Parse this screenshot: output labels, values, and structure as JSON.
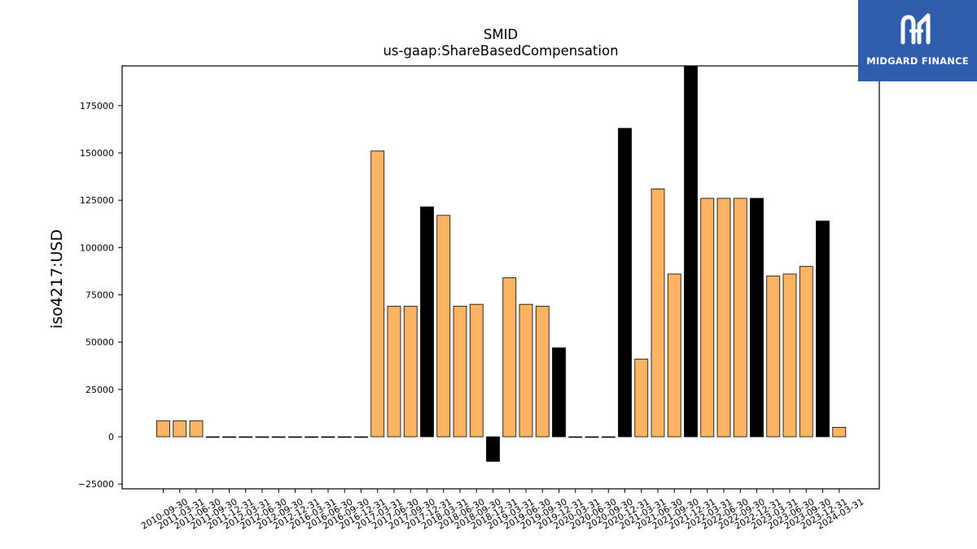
{
  "chart_data": {
    "type": "bar",
    "title": "SMID",
    "subtitle": "us-gaap:ShareBasedCompensation",
    "ylabel": "iso4217:USD",
    "xlabel": "",
    "ylim": [
      -27500,
      196000
    ],
    "yticks": [
      -25000,
      0,
      25000,
      50000,
      75000,
      100000,
      125000,
      150000,
      175000
    ],
    "grid": false,
    "legend": "none",
    "colors": {
      "quarter": "#fdb462",
      "year_end": "#000000",
      "edge": "#000000"
    },
    "categories": [
      "2010-09-30",
      "2011-03-31",
      "2011-06-30",
      "2011-09-30",
      "2011-12-31",
      "2012-03-31",
      "2012-06-30",
      "2012-09-30",
      "2012-12-31",
      "2016-03-31",
      "2016-06-30",
      "2016-09-30",
      "2016-12-31",
      "2017-03-31",
      "2017-06-30",
      "2017-09-30",
      "2017-12-31",
      "2018-03-31",
      "2018-06-30",
      "2018-09-30",
      "2018-12-31",
      "2019-03-31",
      "2019-06-30",
      "2019-09-30",
      "2019-12-31",
      "2020-03-31",
      "2020-06-30",
      "2020-09-30",
      "2020-12-31",
      "2021-03-31",
      "2021-06-30",
      "2021-09-30",
      "2021-12-31",
      "2022-03-31",
      "2022-06-30",
      "2022-09-30",
      "2022-12-31",
      "2023-03-31",
      "2023-06-30",
      "2023-09-30",
      "2023-12-31",
      "2024-03-31"
    ],
    "values": [
      8500,
      8500,
      8500,
      0,
      0,
      0,
      0,
      0,
      0,
      0,
      0,
      0,
      0,
      151000,
      69000,
      69000,
      121500,
      117000,
      69000,
      70000,
      -13000,
      84000,
      70000,
      69000,
      47000,
      0,
      0,
      0,
      163000,
      41000,
      131000,
      86000,
      196000,
      126000,
      126000,
      126000,
      126000,
      85000,
      86000,
      90000,
      114000,
      5000
    ],
    "year_end": [
      false,
      false,
      false,
      false,
      true,
      false,
      false,
      false,
      true,
      false,
      false,
      false,
      true,
      false,
      false,
      false,
      true,
      false,
      false,
      false,
      true,
      false,
      false,
      false,
      true,
      false,
      false,
      false,
      true,
      false,
      false,
      false,
      true,
      false,
      false,
      false,
      true,
      false,
      false,
      false,
      true,
      false
    ]
  },
  "logo": {
    "text": "MIDGARD FINANCE",
    "icon": "midgard-logo-icon",
    "background": "#2f5cab"
  }
}
